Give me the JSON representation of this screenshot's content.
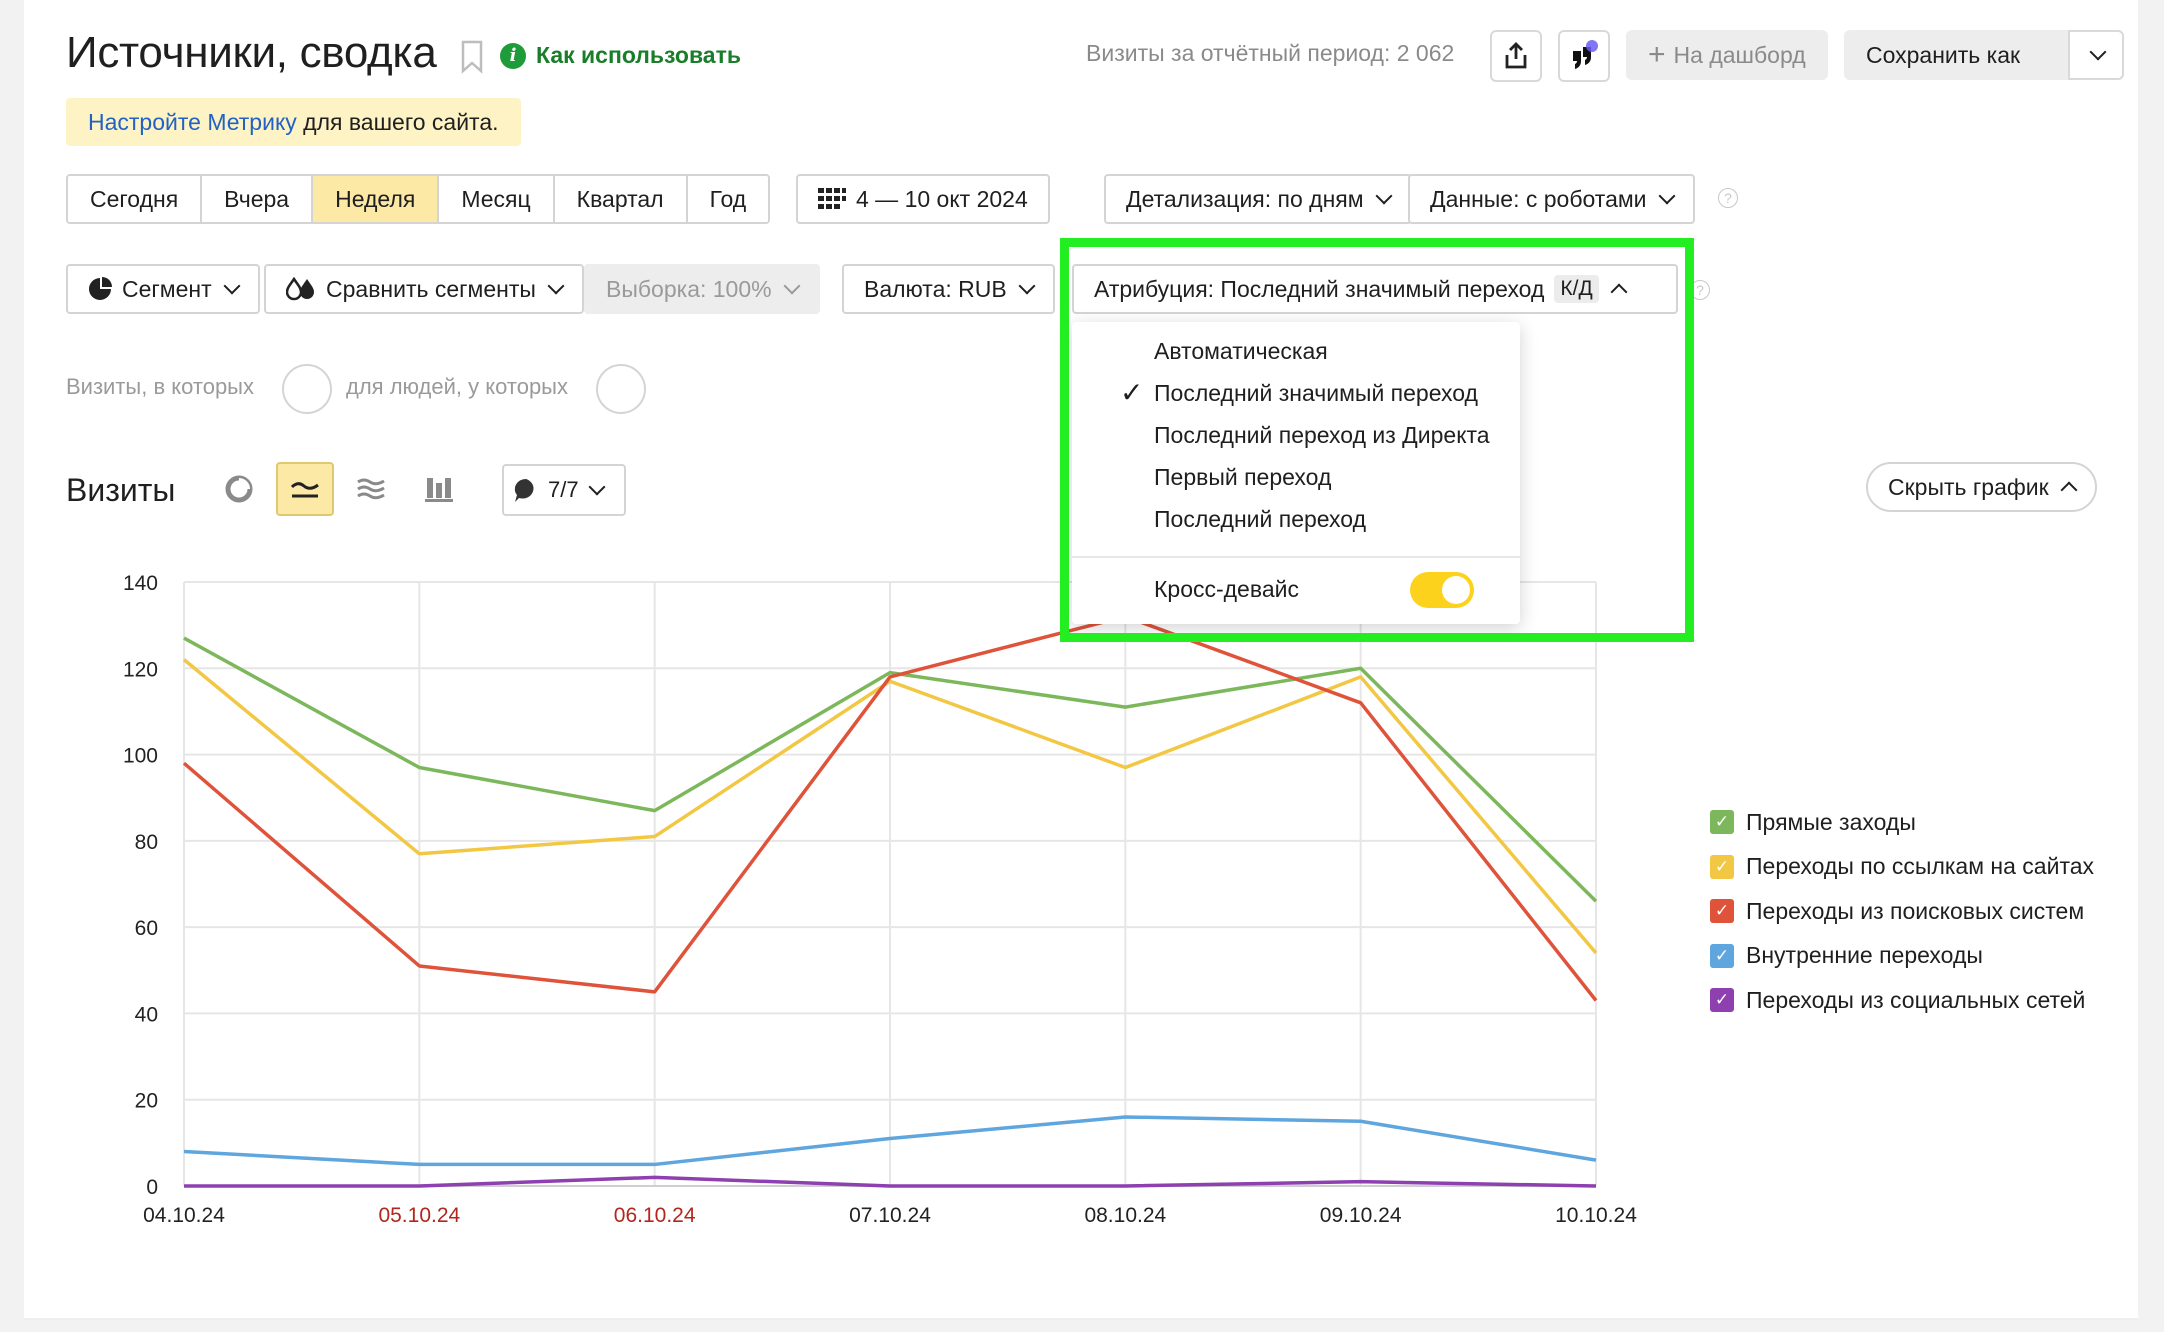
{
  "header": {
    "title": "Источники, сводка",
    "howto_label": "Как использовать",
    "visits_total": "Визиты за отчётный период: 2 062",
    "dashboard_label": "На дашборд",
    "save_label": "Сохранить как"
  },
  "notice": {
    "link": "Настройте Метрику",
    "rest": " для вашего сайта."
  },
  "periods": [
    "Сегодня",
    "Вчера",
    "Неделя",
    "Месяц",
    "Квартал",
    "Год"
  ],
  "active_period": "Неделя",
  "date_range": "4 — 10 окт 2024",
  "detail_label": "Детализация: по дням",
  "data_label": "Данные: с роботами",
  "segment_label": "Сегмент",
  "compare_label": "Сравнить сегменты",
  "sample_label": "Выборка: 100%",
  "currency_label": "Валюта: RUB",
  "attribution_label": "Атрибуция: Последний значимый переход",
  "attribution_badge": "К/Д",
  "filter": {
    "visits_text": "Визиты, в которых",
    "people_text": "для людей, у которых"
  },
  "attribution_menu": {
    "items": [
      "Автоматическая",
      "Последний значимый переход",
      "Последний переход из Директа",
      "Первый переход",
      "Последний переход"
    ],
    "selected": "Последний значимый переход",
    "cross_device_label": "Кросс-девайс",
    "cross_device_on": true
  },
  "chart_section": {
    "title": "Визиты",
    "comments_count": "7/7",
    "hide_label": "Скрыть график"
  },
  "chart_data": {
    "type": "line",
    "x": [
      "04.10.24",
      "05.10.24",
      "06.10.24",
      "07.10.24",
      "08.10.24",
      "09.10.24",
      "10.10.24"
    ],
    "weekend_labels": [
      "05.10.24",
      "06.10.24"
    ],
    "ylim": [
      0,
      140
    ],
    "yticks": [
      0,
      20,
      40,
      60,
      80,
      100,
      120,
      140
    ],
    "grid": true,
    "legend_position": "right",
    "series": [
      {
        "name": "Прямые заходы",
        "color": "#7cb85b",
        "values": [
          127,
          97,
          87,
          119,
          111,
          120,
          66
        ]
      },
      {
        "name": "Переходы по ссылкам на сайтах",
        "color": "#f2c744",
        "values": [
          122,
          77,
          81,
          117,
          97,
          118,
          54
        ]
      },
      {
        "name": "Переходы из поисковых систем",
        "color": "#e0533b",
        "values": [
          98,
          51,
          45,
          118,
          132,
          112,
          43
        ]
      },
      {
        "name": "Внутренние переходы",
        "color": "#5ea6dd",
        "values": [
          8,
          5,
          5,
          11,
          16,
          15,
          6
        ]
      },
      {
        "name": "Переходы из социальных сетей",
        "color": "#8e3fb0",
        "values": [
          0,
          0,
          2,
          0,
          0,
          1,
          0
        ]
      }
    ]
  }
}
